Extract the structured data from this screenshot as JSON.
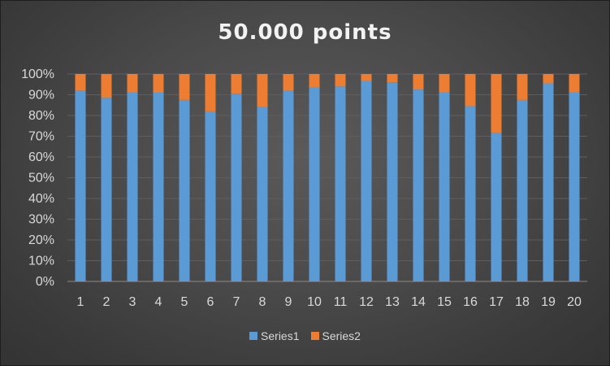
{
  "chart_data": {
    "type": "bar",
    "stacked": "percent",
    "title": "50.000 points",
    "xlabel": "",
    "ylabel": "",
    "ylim": [
      0,
      100
    ],
    "yticks": [
      "0%",
      "10%",
      "20%",
      "30%",
      "40%",
      "50%",
      "60%",
      "70%",
      "80%",
      "90%",
      "100%"
    ],
    "categories": [
      "1",
      "2",
      "3",
      "4",
      "5",
      "6",
      "7",
      "8",
      "9",
      "10",
      "11",
      "12",
      "13",
      "14",
      "15",
      "16",
      "17",
      "18",
      "19",
      "20"
    ],
    "series": [
      {
        "name": "Series1",
        "color": "#5b9bd5",
        "values": [
          92,
          88.5,
          91,
          91,
          87.5,
          82,
          90.5,
          84,
          92,
          93.5,
          94,
          96.5,
          96,
          92.5,
          91,
          84.5,
          71.5,
          87.5,
          95.5,
          91
        ]
      },
      {
        "name": "Series2",
        "color": "#ed7d31",
        "values": [
          8,
          11.5,
          9,
          9,
          12.5,
          18,
          9.5,
          16,
          8,
          6.5,
          6,
          3.5,
          4,
          7.5,
          9,
          15.5,
          28.5,
          12.5,
          4.5,
          9
        ]
      }
    ],
    "grid": true,
    "legend_position": "bottom"
  }
}
